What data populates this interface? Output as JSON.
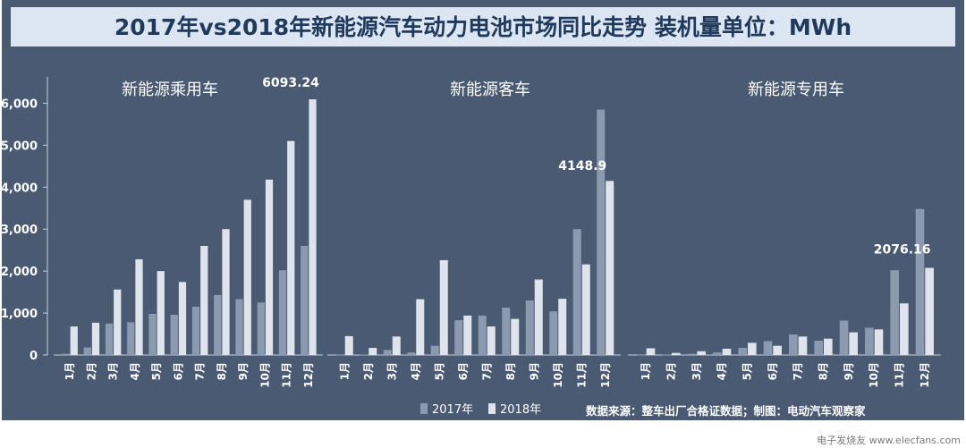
{
  "title": "2017年vs2018年新能源汽车动力电池市场同比走势  装机量单位：MWh",
  "source": "数据来源：整车出厂合格证数据；制图：电动汽车观察家",
  "watermark": "电子发烧友 www.elecfans.com",
  "colors": {
    "background": "#4a5a72",
    "series_2017": "#8c9ab0",
    "series_2018": "#dfe4ec",
    "title_bar": "#dce6f2",
    "title_text": "#1f3a5c"
  },
  "chart_data": {
    "type": "bar",
    "ylim": [
      0,
      6500
    ],
    "yticks": [
      "0",
      "1,000",
      "2,000",
      "3,000",
      "4,000",
      "5,000",
      "6,000"
    ],
    "ytick_values": [
      0,
      1000,
      2000,
      3000,
      4000,
      5000,
      6000
    ],
    "categories": [
      "1月",
      "2月",
      "3月",
      "4月",
      "5月",
      "6月",
      "7月",
      "8月",
      "9月",
      "10月",
      "11月",
      "12月"
    ],
    "legend": [
      "2017年",
      "2018年"
    ],
    "legend_placement": "bottom-center",
    "panels": [
      {
        "title": "新能源乘用车",
        "annotation": "6093.24",
        "series": [
          {
            "name": "2017年",
            "values": [
              30,
              180,
              750,
              780,
              980,
              960,
              1150,
              1430,
              1330,
              1250,
              2020,
              2600
            ]
          },
          {
            "name": "2018年",
            "values": [
              680,
              770,
              1560,
              2280,
              2000,
              1740,
              2600,
              3000,
              3700,
              4180,
              5100,
              6093.24
            ]
          }
        ]
      },
      {
        "title": "新能源客车",
        "annotation": "4148.9",
        "series": [
          {
            "name": "2017年",
            "values": [
              10,
              10,
              120,
              60,
              220,
              830,
              940,
              1130,
              1300,
              1040,
              3000,
              5850
            ]
          },
          {
            "name": "2018年",
            "values": [
              450,
              170,
              440,
              1330,
              2260,
              940,
              680,
              860,
              1800,
              1340,
              2160,
              4148.9
            ]
          }
        ]
      },
      {
        "title": "新能源专用车",
        "annotation": "2076.16",
        "series": [
          {
            "name": "2017年",
            "values": [
              5,
              10,
              30,
              60,
              170,
              330,
              490,
              340,
              820,
              650,
              2020,
              3480
            ]
          },
          {
            "name": "2018年",
            "values": [
              160,
              50,
              90,
              150,
              290,
              220,
              440,
              390,
              540,
              610,
              1230,
              2076.16
            ]
          }
        ]
      }
    ]
  }
}
